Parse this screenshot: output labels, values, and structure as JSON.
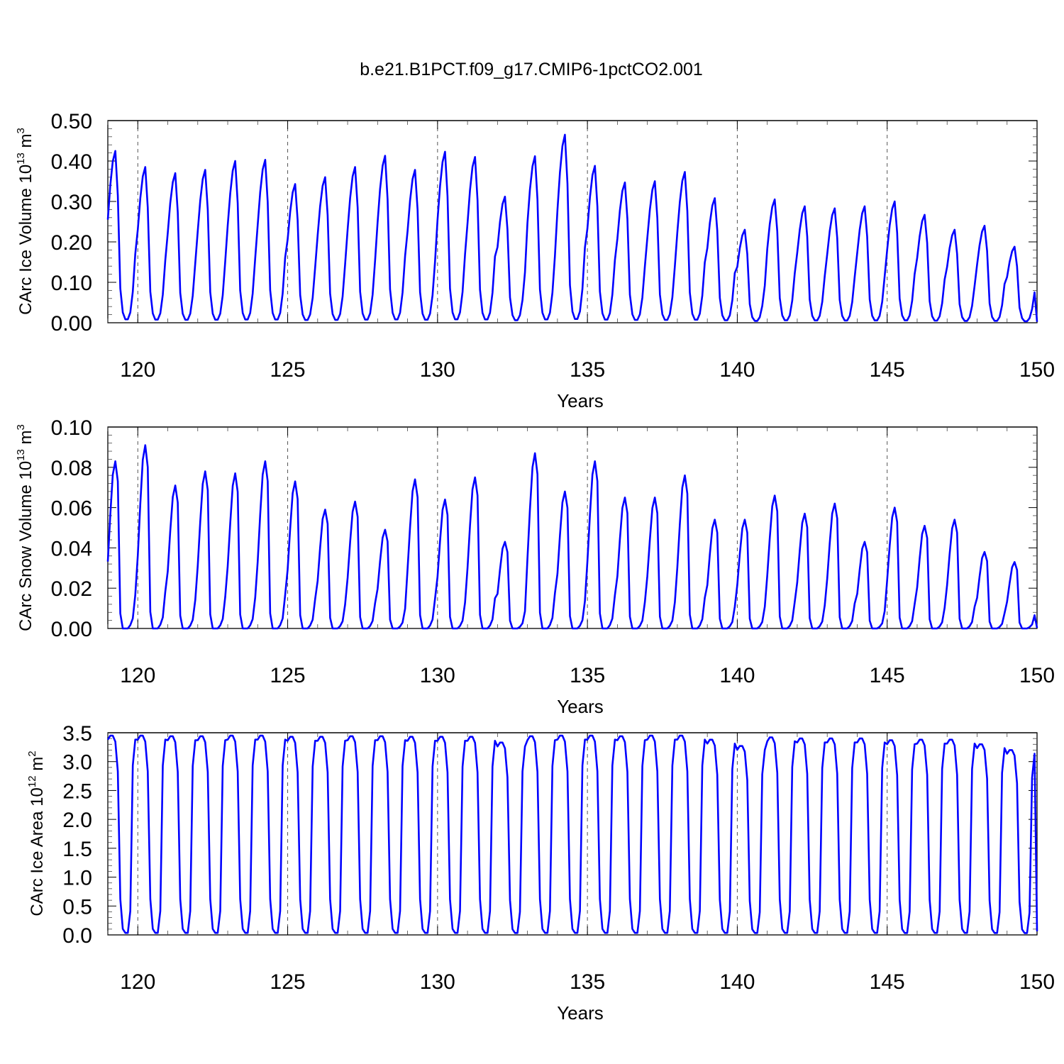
{
  "title": "b.e21.B1PCT.f09_g17.CMIP6-1pctCO2.001",
  "colors": {
    "series": "#0000ff",
    "axis": "#000000",
    "grid": "#555555"
  },
  "chart_data": [
    {
      "type": "line",
      "ylabel": {
        "main": "CArc Ice Volume 10",
        "sup_exp": "13",
        "unit": " m",
        "sup_unit": "3"
      },
      "xlabel": "Years",
      "xlim": [
        119,
        150
      ],
      "ylim": [
        0.0,
        0.5
      ],
      "ylim_draw": [
        0.0,
        0.5
      ],
      "yticks": [
        0.0,
        0.1,
        0.2,
        0.3,
        0.4,
        0.5
      ],
      "ytick_labels": [
        "0.00",
        "0.10",
        "0.20",
        "0.30",
        "0.40",
        "0.50"
      ],
      "xticks": [
        120,
        125,
        130,
        135,
        140,
        145,
        150
      ],
      "xtick_labels": [
        "120",
        "125",
        "130",
        "135",
        "140",
        "145",
        "150"
      ],
      "grid_x": [
        120,
        125,
        130,
        135,
        140,
        145
      ],
      "series": [
        {
          "start_year": 119,
          "monthly_climatology": [
            0.6,
            0.8,
            0.94,
            1.0,
            0.74,
            0.2,
            0.06,
            0.02,
            0.02,
            0.06,
            0.18,
            0.4
          ],
          "annual_max": [
            0.425,
            0.385,
            0.37,
            0.378,
            0.4,
            0.403,
            0.343,
            0.36,
            0.385,
            0.413,
            0.378,
            0.423,
            0.41,
            0.312,
            0.412,
            0.465,
            0.388,
            0.347,
            0.35,
            0.373,
            0.308,
            0.23,
            0.305,
            0.288,
            0.283,
            0.288,
            0.3,
            0.267,
            0.23,
            0.24,
            0.188
          ]
        }
      ]
    },
    {
      "type": "line",
      "ylabel": {
        "main": "CArc Snow Volume 10",
        "sup_exp": "13",
        "unit": " m",
        "sup_unit": "3"
      },
      "xlabel": "Years",
      "xlim": [
        119,
        150
      ],
      "ylim": [
        0.0,
        0.1
      ],
      "ylim_draw": [
        0.0,
        0.1
      ],
      "yticks": [
        0.0,
        0.02,
        0.04,
        0.06,
        0.08,
        0.1
      ],
      "ytick_labels": [
        "0.00",
        "0.02",
        "0.04",
        "0.06",
        "0.08",
        "0.10"
      ],
      "xticks": [
        120,
        125,
        130,
        135,
        140,
        145,
        150
      ],
      "xtick_labels": [
        "120",
        "125",
        "130",
        "135",
        "140",
        "145",
        "150"
      ],
      "grid_x": [
        120,
        125,
        130,
        135,
        140,
        145
      ],
      "series": [
        {
          "start_year": 119,
          "monthly_climatology": [
            0.4,
            0.68,
            0.92,
            1.0,
            0.88,
            0.09,
            0.0,
            0.0,
            0.0,
            0.02,
            0.06,
            0.2
          ],
          "annual_max": [
            0.083,
            0.091,
            0.071,
            0.078,
            0.077,
            0.083,
            0.073,
            0.059,
            0.063,
            0.049,
            0.074,
            0.064,
            0.075,
            0.043,
            0.087,
            0.068,
            0.083,
            0.065,
            0.065,
            0.076,
            0.054,
            0.054,
            0.066,
            0.057,
            0.062,
            0.043,
            0.06,
            0.051,
            0.054,
            0.038,
            0.033
          ]
        }
      ]
    },
    {
      "type": "line",
      "ylabel": {
        "main": "CArc Ice Area 10",
        "sup_exp": "12",
        "unit": " m",
        "sup_unit": "2"
      },
      "xlabel": "Years",
      "xlim": [
        119,
        150
      ],
      "ylim": [
        0.0,
        3.5
      ],
      "ylim_draw": [
        0.0,
        3.5
      ],
      "yticks": [
        0.0,
        0.5,
        1.0,
        1.5,
        2.0,
        2.5,
        3.0,
        3.5
      ],
      "ytick_labels": [
        "0.0",
        "0.5",
        "1.0",
        "1.5",
        "2.0",
        "2.5",
        "3.0",
        "3.5"
      ],
      "xticks": [
        120,
        125,
        130,
        135,
        140,
        145,
        150
      ],
      "xtick_labels": [
        "120",
        "125",
        "130",
        "135",
        "140",
        "145",
        "150"
      ],
      "grid_x": [
        120,
        125,
        130,
        135,
        140,
        145
      ],
      "series": [
        {
          "start_year": 119,
          "monthly_climatology": [
            0.98,
            1.0,
            1.0,
            0.97,
            0.82,
            0.18,
            0.03,
            0.01,
            0.01,
            0.12,
            0.85,
            0.98
          ],
          "annual_max": [
            3.45,
            3.45,
            3.44,
            3.44,
            3.45,
            3.45,
            3.43,
            3.43,
            3.44,
            3.44,
            3.43,
            3.43,
            3.43,
            3.33,
            3.44,
            3.45,
            3.45,
            3.44,
            3.45,
            3.45,
            3.38,
            3.27,
            3.42,
            3.4,
            3.4,
            3.4,
            3.37,
            3.38,
            3.38,
            3.3,
            3.2
          ]
        }
      ]
    }
  ]
}
